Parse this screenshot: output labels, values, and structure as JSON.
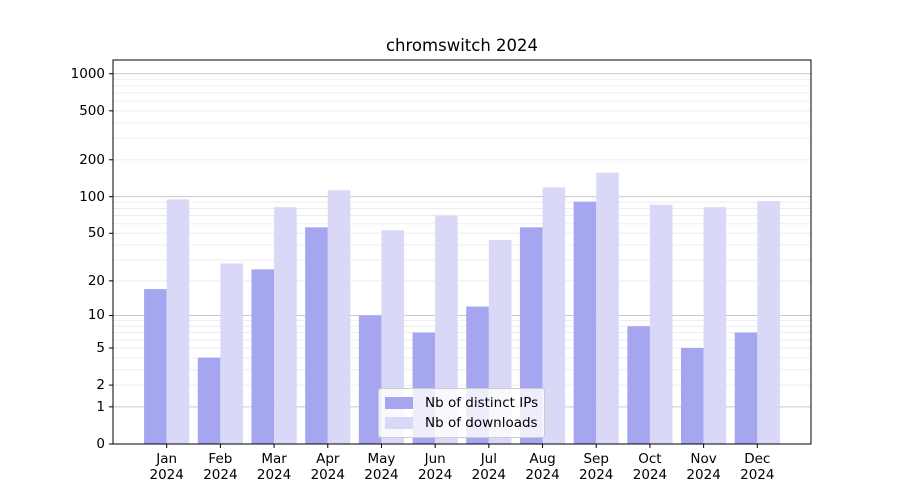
{
  "title": "chromswitch 2024",
  "chart_data": {
    "type": "bar",
    "title": "chromswitch 2024",
    "categories": [
      "Jan",
      "Feb",
      "Mar",
      "Apr",
      "May",
      "Jun",
      "Jul",
      "Aug",
      "Sep",
      "Oct",
      "Nov",
      "Dec"
    ],
    "year_label": "2024",
    "series": [
      {
        "name": "Nb of distinct IPs",
        "color": "#a5a5f0",
        "values": [
          17,
          4,
          25,
          56,
          10,
          7,
          12,
          56,
          91,
          8,
          5,
          7
        ]
      },
      {
        "name": "Nb of downloads",
        "color": "#d9d9f7",
        "values": [
          95,
          28,
          82,
          113,
          53,
          70,
          44,
          119,
          157,
          86,
          82,
          92
        ]
      }
    ],
    "yscale": "log1p",
    "yticks": [
      0,
      1,
      2,
      5,
      10,
      20,
      50,
      100,
      200,
      500,
      1000
    ],
    "ylim": [
      0,
      1290
    ],
    "grid": {
      "major_at": [
        1,
        10,
        100,
        1000
      ],
      "minor": "2-9 of each decade"
    },
    "legend_position": "inside lower-center",
    "colors": {
      "grid_major": "#c9c9c9",
      "grid_minor": "#ededed",
      "axis": "#000000",
      "text": "#000000"
    }
  }
}
